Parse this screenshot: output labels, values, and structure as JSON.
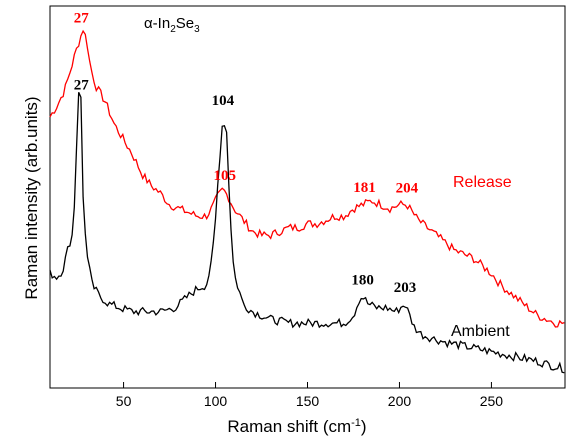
{
  "chart_data": {
    "type": "line",
    "title_parts": [
      "α-In",
      "2",
      "Se",
      "3"
    ],
    "xlabel_parts": [
      "Raman shift (cm",
      "-1",
      ")"
    ],
    "ylabel": "Raman intensity (arb.units)",
    "xlim": [
      10,
      290
    ],
    "ylim": [
      0,
      100
    ],
    "xticks": [
      50,
      100,
      150,
      200,
      250
    ],
    "yticks_shown": false,
    "grid": false,
    "series": [
      {
        "name": "Release",
        "color": "#ff0000",
        "peaks": [
          {
            "label": "27",
            "x": 27
          },
          {
            "label": "105",
            "x": 105
          },
          {
            "label": "181",
            "x": 181
          },
          {
            "label": "204",
            "x": 204
          }
        ],
        "x": [
          10,
          14,
          18,
          21,
          24,
          26,
          28,
          30,
          32,
          35,
          40,
          45,
          50,
          55,
          60,
          65,
          70,
          75,
          80,
          85,
          90,
          95,
          98,
          101,
          104,
          107,
          110,
          115,
          120,
          125,
          130,
          135,
          140,
          145,
          150,
          155,
          160,
          165,
          170,
          175,
          180,
          185,
          190,
          195,
          200,
          204,
          210,
          215,
          220,
          225,
          230,
          235,
          240,
          245,
          250,
          255,
          260,
          265,
          270,
          275,
          280,
          285,
          290
        ],
        "y": [
          71,
          74,
          78,
          83,
          88,
          91,
          94,
          91,
          84,
          79,
          75,
          69,
          65,
          61,
          56,
          53,
          51,
          48,
          47,
          46,
          45,
          45,
          47,
          50,
          52,
          50,
          47,
          44,
          41,
          40,
          40,
          41,
          42,
          42,
          43,
          43,
          44,
          45,
          45,
          47,
          48,
          49,
          48,
          47,
          48,
          48,
          44,
          42,
          40,
          38,
          36,
          35,
          34,
          32,
          30,
          27,
          25,
          23,
          21,
          19,
          18,
          17,
          17
        ]
      },
      {
        "name": "Ambient",
        "color": "#000000",
        "peaks": [
          {
            "label": "27",
            "x": 27
          },
          {
            "label": "104",
            "x": 104
          },
          {
            "label": "180",
            "x": 180
          },
          {
            "label": "203",
            "x": 203
          }
        ],
        "x": [
          10,
          14,
          17,
          20,
          22,
          24,
          25,
          26,
          27,
          28,
          30,
          33,
          37,
          42,
          48,
          55,
          62,
          70,
          78,
          85,
          90,
          95,
          98,
          100,
          102,
          104,
          106,
          108,
          110,
          115,
          120,
          130,
          140,
          150,
          160,
          170,
          175,
          178,
          180,
          183,
          188,
          193,
          198,
          203,
          208,
          212,
          218,
          225,
          235,
          245,
          255,
          265,
          275,
          282,
          290
        ],
        "y": [
          30,
          29,
          31,
          37,
          40,
          53,
          78,
          78,
          75,
          50,
          35,
          27,
          24,
          22,
          21,
          20,
          20,
          20,
          21,
          24,
          26,
          27,
          33,
          44,
          59,
          71,
          67,
          45,
          30,
          22,
          20,
          18,
          17,
          17,
          17,
          17,
          19,
          23,
          24,
          22,
          21,
          21,
          20,
          22,
          16,
          14,
          13,
          12,
          11,
          10,
          9,
          8,
          7,
          6,
          5
        ]
      }
    ]
  }
}
